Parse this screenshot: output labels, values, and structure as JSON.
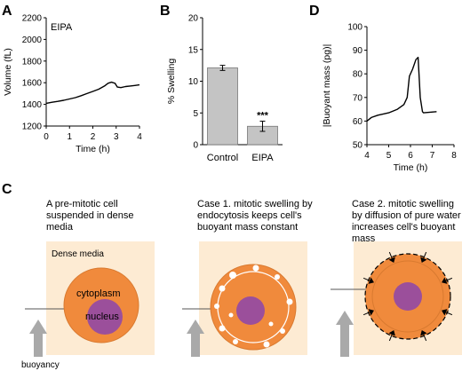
{
  "panel_letters": {
    "a": "A",
    "b": "B",
    "c": "C",
    "d": "D"
  },
  "chart_data": [
    {
      "type": "line",
      "panel": "A",
      "annotation": "EIPA",
      "xlabel": "Time (h)",
      "ylabel": "Volume (fL)",
      "xlim": [
        0,
        4
      ],
      "ylim": [
        1200,
        2200
      ],
      "xticks": [
        "0",
        "1",
        "2",
        "3",
        "4"
      ],
      "yticks": [
        "1200",
        "1400",
        "1600",
        "1800",
        "2000",
        "2200"
      ],
      "grid": false,
      "series": [
        {
          "x": [
            0,
            0.25,
            0.5,
            0.75,
            1.0,
            1.25,
            1.5,
            1.75,
            2.0,
            2.25,
            2.5,
            2.65,
            2.8,
            2.95,
            3.05,
            3.2,
            3.4,
            3.6,
            3.8,
            4.0
          ],
          "y": [
            1410,
            1420,
            1428,
            1438,
            1450,
            1462,
            1480,
            1500,
            1520,
            1540,
            1570,
            1595,
            1605,
            1595,
            1560,
            1555,
            1565,
            1570,
            1575,
            1580
          ]
        }
      ]
    },
    {
      "type": "bar",
      "panel": "B",
      "ylabel": "% Swelling",
      "categories": [
        "Control",
        "EIPA"
      ],
      "values": [
        12.1,
        2.9
      ],
      "errors": [
        0.4,
        0.8
      ],
      "significance": [
        "",
        "***"
      ],
      "ylim": [
        0,
        20
      ],
      "yticks": [
        "0",
        "5",
        "10",
        "15",
        "20"
      ],
      "grid": false
    },
    {
      "type": "line",
      "panel": "D",
      "xlabel": "Time (h)",
      "ylabel": "|Buoyant mass (pg)|",
      "xlim": [
        4,
        8
      ],
      "ylim": [
        50,
        100
      ],
      "xticks": [
        "4",
        "5",
        "6",
        "7",
        "8"
      ],
      "yticks": [
        "50",
        "60",
        "70",
        "80",
        "90",
        "100"
      ],
      "grid": false,
      "series": [
        {
          "x": [
            4.0,
            4.2,
            4.5,
            5.0,
            5.4,
            5.7,
            5.85,
            5.95,
            6.1,
            6.25,
            6.35,
            6.45,
            6.55,
            6.6,
            7.2
          ],
          "y": [
            60,
            61.5,
            62.5,
            63.5,
            65,
            67,
            70,
            79,
            82,
            86,
            87,
            70,
            64,
            63.5,
            64
          ]
        }
      ]
    }
  ],
  "panel_c": {
    "captions": [
      "A pre-mitotic cell suspended in dense media",
      "Case 1. mitotic swelling by endocytosis keeps cell's buoyant mass constant",
      "Case 2. mitotic swelling by diffusion of pure water increases cell's buoyant mass"
    ],
    "labels": {
      "dense_media": "Dense media",
      "cytoplasm": "cytoplasm",
      "nucleus": "nucleus",
      "buoyancy": "buoyancy"
    },
    "colors": {
      "media": "#fdebd3",
      "cytoplasm": "#f08a3c",
      "nucleus": "#9b4f9b",
      "arrow": "#a9a9a9",
      "bar": "#c4c4c4"
    }
  }
}
